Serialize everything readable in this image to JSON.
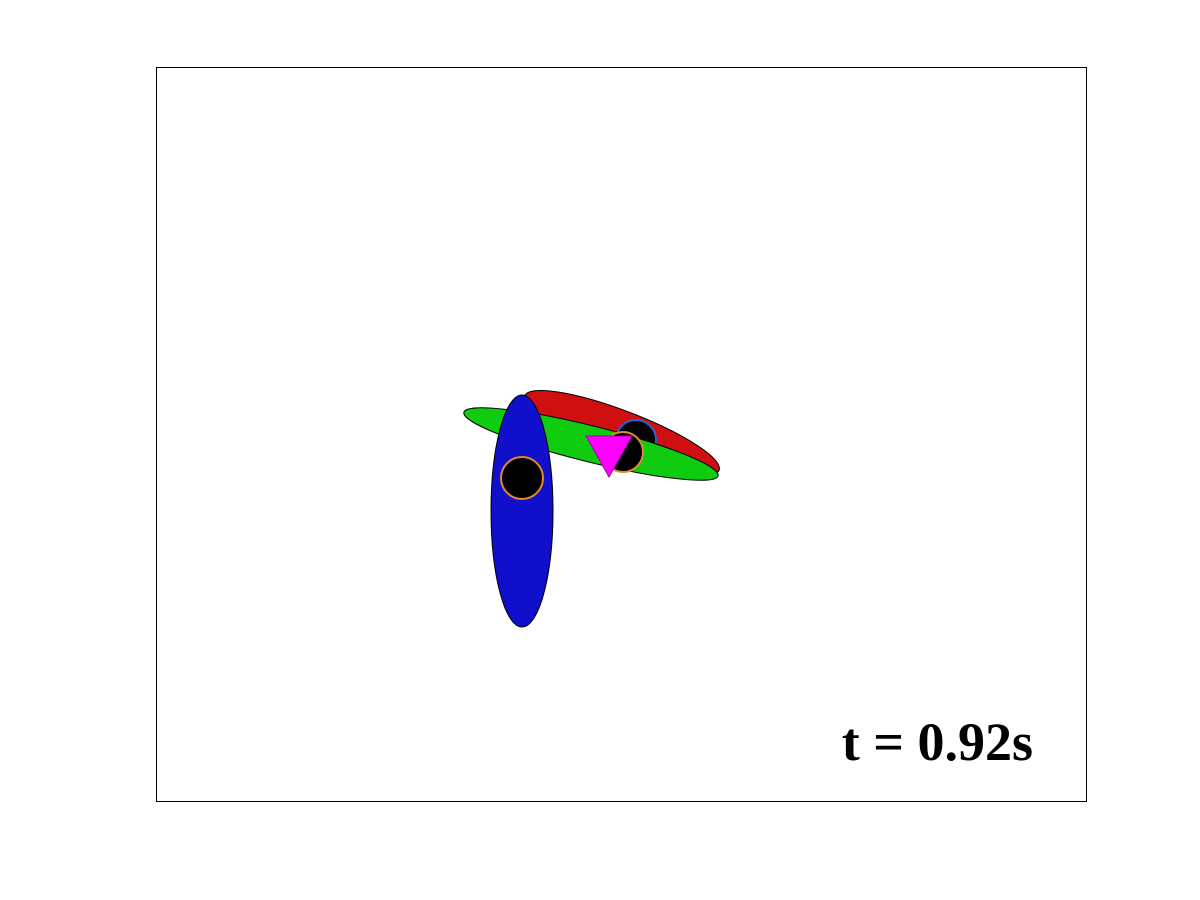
{
  "time_label": "t = 0.92s",
  "colors": {
    "background": "#ffffff",
    "frame": "#000000",
    "red_link": "#d01010",
    "green_link": "#10cc10",
    "blue_link": "#1010cc",
    "joint_fill": "#000000",
    "joint_ring_orange": "#e08a2a",
    "joint_ring_blue": "#2266cc",
    "marker": "#ff00ff"
  },
  "bodies": [
    {
      "name": "red-link",
      "color": "red_link"
    },
    {
      "name": "green-link",
      "color": "green_link"
    },
    {
      "name": "blue-link",
      "color": "blue_link"
    }
  ],
  "joints": [
    {
      "name": "joint-blue-link",
      "ring": "joint_ring_orange"
    },
    {
      "name": "joint-red-link",
      "ring": "joint_ring_blue"
    },
    {
      "name": "joint-green-link",
      "ring": "joint_ring_orange"
    }
  ],
  "marker": {
    "name": "center-of-mass-marker",
    "icon": "down-triangle-icon",
    "color": "marker"
  }
}
